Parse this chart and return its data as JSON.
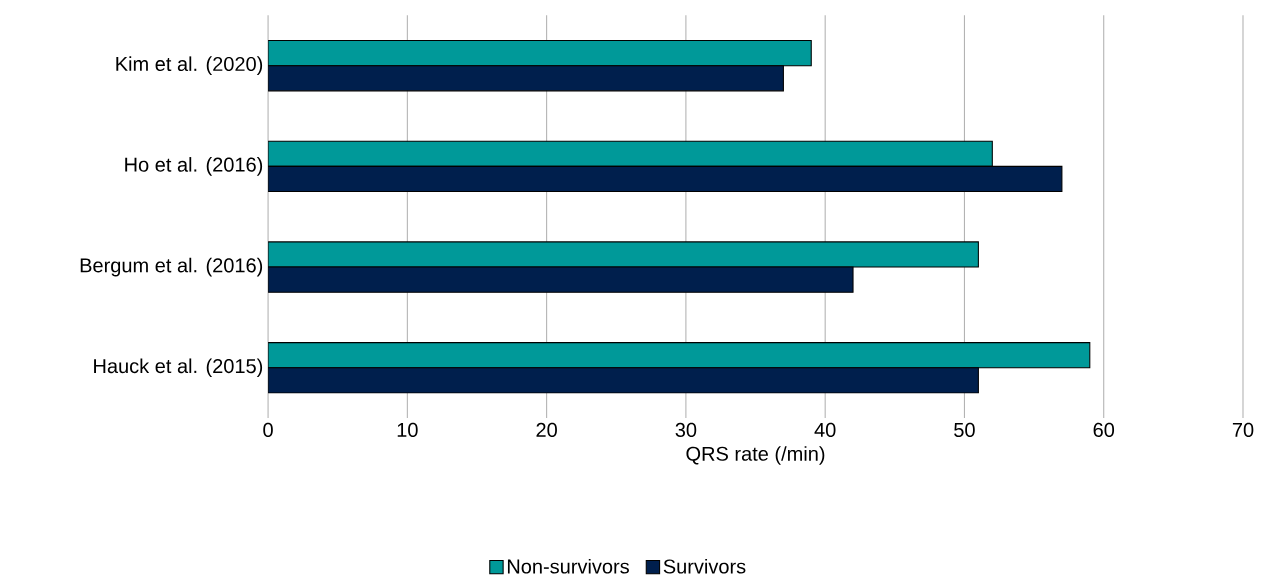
{
  "chart_data": {
    "type": "bar",
    "orientation": "horizontal",
    "categories": [
      "Kim et al. (2020)",
      "Ho et al. (2016)",
      "Bergum et al. (2016)",
      "Hauck et al. (2015)"
    ],
    "series": [
      {
        "name": "Non-survivors",
        "color": "#009999",
        "values": [
          39,
          52,
          51,
          59
        ]
      },
      {
        "name": "Survivors",
        "color": "#001f4d",
        "values": [
          37,
          57,
          42,
          51
        ]
      }
    ],
    "xlabel": "QRS rate (/min)",
    "xlim": [
      0,
      70
    ],
    "xticks": [
      0,
      10,
      20,
      30,
      40,
      50,
      60,
      70
    ],
    "grid": "x",
    "legend": "bottom"
  }
}
